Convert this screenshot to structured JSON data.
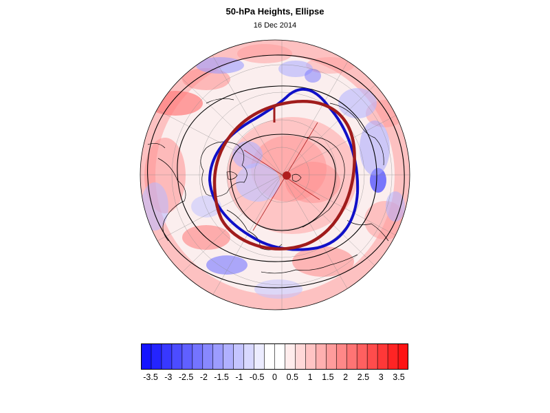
{
  "figure": {
    "title": "50-hPa Heights, Ellipse",
    "subtitle": "16 Dec 2014"
  },
  "colors": {
    "contour": "#000000",
    "observed_vortex_edge": "#1010c8",
    "fitted_ellipse": "#a01c1c",
    "ellipse_center": "#b01e1e",
    "coastline": "#000000",
    "graticule": "#888888"
  },
  "map": {
    "projection": "polar-stereographic-north",
    "legend": "none"
  },
  "colorbar": {
    "labels": [
      "-3.5",
      "-3",
      "-2.5",
      "-2",
      "-1.5",
      "-1",
      "-0.5",
      "0",
      "0.5",
      "1",
      "1.5",
      "2",
      "2.5",
      "3",
      "3.5"
    ],
    "colors": [
      "#1414ff",
      "#2424ff",
      "#3838ff",
      "#4c4cff",
      "#6060ff",
      "#7474ff",
      "#8888ff",
      "#9c9cff",
      "#b0b0ff",
      "#c4c4ff",
      "#d8d8ff",
      "#ececff",
      "#ffffff",
      "#ffffff",
      "#ffecec",
      "#ffd8d8",
      "#ffc4c4",
      "#ffb0b0",
      "#ff9c9c",
      "#ff8888",
      "#ff7474",
      "#ff6060",
      "#ff4c4c",
      "#ff3838",
      "#ff2424",
      "#ff1414"
    ]
  }
}
